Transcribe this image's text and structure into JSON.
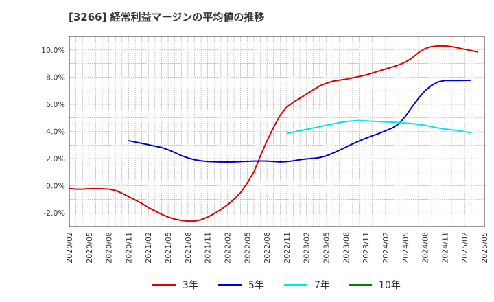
{
  "title": "[3266]  経常利益マージンの平均値の推移",
  "chart_data": {
    "type": "line",
    "title": "[3266]  経常利益マージンの平均値の推移",
    "xlabel": "",
    "ylabel": "",
    "ylim": [
      -3.0,
      11.0
    ],
    "y_ticks": [
      "10.0%",
      "8.0%",
      "6.0%",
      "4.0%",
      "2.0%",
      "0.0%",
      "-2.0%"
    ],
    "y_tick_values": [
      10,
      8,
      6,
      4,
      2,
      0,
      -2
    ],
    "x_ticks": [
      "2020/02",
      "2020/05",
      "2020/08",
      "2020/11",
      "2021/02",
      "2021/05",
      "2021/08",
      "2021/11",
      "2022/02",
      "2022/05",
      "2022/08",
      "2022/11",
      "2023/02",
      "2023/05",
      "2023/08",
      "2023/11",
      "2024/02",
      "2024/05",
      "2024/08",
      "2024/11",
      "2025/02",
      "2025/05"
    ],
    "grid": true,
    "legend_position": "bottom",
    "series": [
      {
        "name": "3年",
        "color": "#dd0000",
        "start": "2020/02",
        "values": [
          -0.2,
          -0.25,
          -0.25,
          -0.22,
          -0.22,
          -0.22,
          -0.25,
          -0.35,
          -0.55,
          -0.8,
          -1.05,
          -1.3,
          -1.6,
          -1.85,
          -2.1,
          -2.3,
          -2.45,
          -2.55,
          -2.6,
          -2.6,
          -2.5,
          -2.3,
          -2.05,
          -1.75,
          -1.4,
          -1.0,
          -0.5,
          0.2,
          1.0,
          2.2,
          3.3,
          4.3,
          5.2,
          5.8,
          6.15,
          6.45,
          6.75,
          7.05,
          7.35,
          7.55,
          7.7,
          7.78,
          7.85,
          7.95,
          8.05,
          8.15,
          8.3,
          8.45,
          8.6,
          8.75,
          8.9,
          9.1,
          9.4,
          9.8,
          10.1,
          10.25,
          10.3,
          10.3,
          10.25,
          10.15,
          10.05,
          9.95,
          9.85
        ]
      },
      {
        "name": "5年",
        "color": "#0000cc",
        "start": "2020/11",
        "values": [
          3.32,
          3.22,
          3.12,
          3.02,
          2.92,
          2.82,
          2.65,
          2.45,
          2.22,
          2.05,
          1.92,
          1.84,
          1.79,
          1.77,
          1.76,
          1.75,
          1.76,
          1.78,
          1.8,
          1.82,
          1.83,
          1.82,
          1.79,
          1.76,
          1.78,
          1.84,
          1.92,
          1.98,
          2.02,
          2.08,
          2.2,
          2.4,
          2.62,
          2.85,
          3.08,
          3.3,
          3.5,
          3.68,
          3.85,
          4.05,
          4.25,
          4.55,
          5.1,
          5.8,
          6.45,
          7.0,
          7.4,
          7.65,
          7.75,
          7.75,
          7.75,
          7.76,
          7.77
        ]
      },
      {
        "name": "7年",
        "color": "#00e5ee",
        "start": "2022/11",
        "values": [
          3.85,
          3.95,
          4.05,
          4.15,
          4.25,
          4.35,
          4.45,
          4.55,
          4.65,
          4.72,
          4.78,
          4.8,
          4.78,
          4.75,
          4.72,
          4.7,
          4.68,
          4.66,
          4.62,
          4.58,
          4.52,
          4.45,
          4.35,
          4.25,
          4.18,
          4.12,
          4.06,
          3.98,
          3.9
        ]
      },
      {
        "name": "10年",
        "color": "#008000",
        "start": "",
        "values": []
      }
    ]
  }
}
